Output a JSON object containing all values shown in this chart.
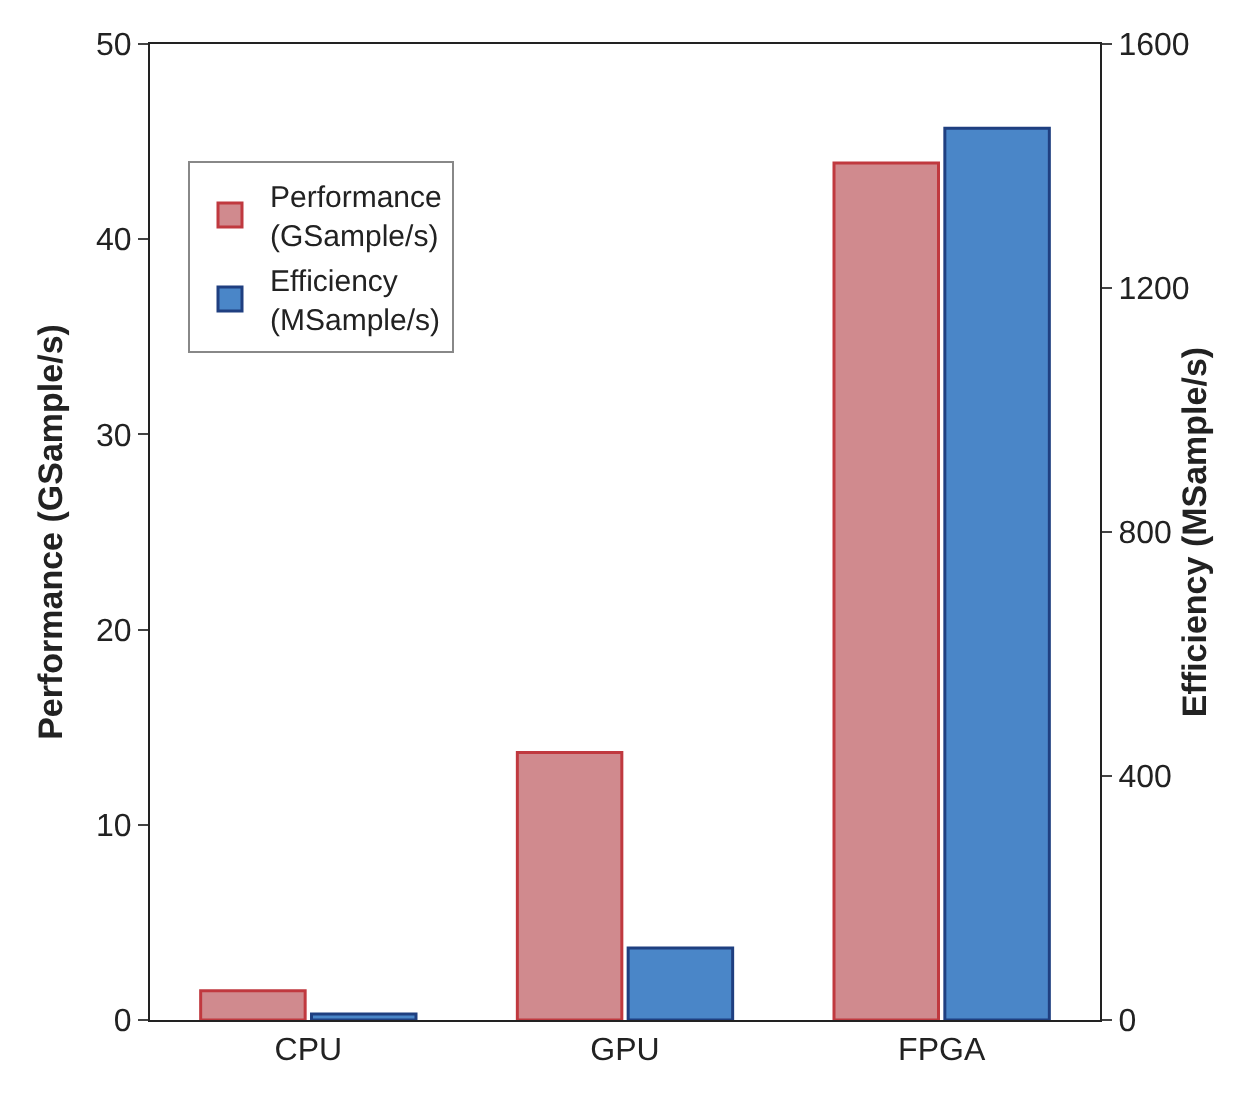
{
  "chart_data": {
    "type": "bar",
    "categories": [
      "CPU",
      "GPU",
      "FPGA"
    ],
    "series": [
      {
        "name": "Performance\n(GSample/s)",
        "color": "#d08a8e",
        "values": [
          1.5,
          13.7,
          43.9
        ]
      },
      {
        "name": "Efficiency\n(MSample/s)",
        "color": "#4a86c8",
        "values": [
          10,
          118,
          1462
        ],
        "axis": "y2"
      }
    ],
    "ylabel": "Performance (GSample/s)",
    "y2label": "Efficiency (MSample/s)",
    "ylim": [
      0,
      50
    ],
    "yticks": [
      0,
      10,
      20,
      30,
      40,
      50
    ],
    "y2lim": [
      0,
      1600
    ],
    "y2ticks": [
      0,
      400,
      800,
      1200,
      1600
    ],
    "grid": false,
    "legend": "top left"
  }
}
